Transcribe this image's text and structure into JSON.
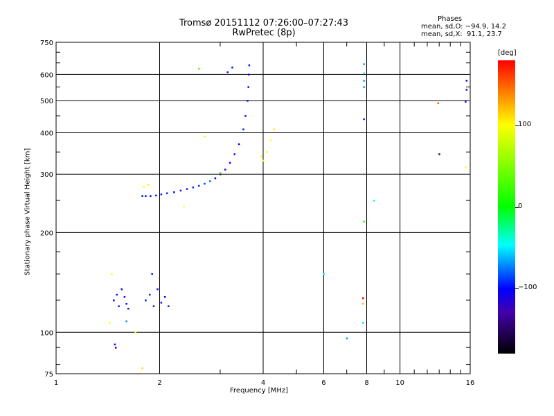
{
  "header": {
    "title_line1": "Tromsø 20151112 07:26:00–07:27:43",
    "title_line2": "RwPretec (8p)",
    "phases_title": "Phases",
    "phases_o": "mean, sd,O: −94.9, 14.2",
    "phases_x": "mean, sd,X:  91.1, 23.7"
  },
  "colorbar": {
    "unit": "[deg]",
    "ticks": [
      {
        "value": 100,
        "label": "100"
      },
      {
        "value": 0,
        "label": "0"
      },
      {
        "value": -100,
        "label": "−100"
      }
    ],
    "range": [
      -180,
      180
    ]
  },
  "chart_data": {
    "type": "scatter",
    "title": "Tromsø 20151112 07:26:00–07:27:43",
    "subtitle": "RwPretec (8p)",
    "xlabel": "Frequency [MHz]",
    "ylabel": "Stationary phase Virtual Height [km]",
    "x_scale": "log",
    "y_scale": "log",
    "xlim": [
      1,
      16
    ],
    "ylim": [
      75,
      750
    ],
    "x_ticks": [
      {
        "value": 1,
        "label": "1"
      },
      {
        "value": 2,
        "label": "2"
      },
      {
        "value": 4,
        "label": "4"
      },
      {
        "value": 6,
        "label": "6"
      },
      {
        "value": 8,
        "label": "8"
      },
      {
        "value": 10,
        "label": "10"
      },
      {
        "value": 16,
        "label": "16"
      }
    ],
    "y_ticks": [
      {
        "value": 75,
        "label": "75"
      },
      {
        "value": 100,
        "label": "100"
      },
      {
        "value": 200,
        "label": "200"
      },
      {
        "value": 300,
        "label": "300"
      },
      {
        "value": 400,
        "label": "400"
      },
      {
        "value": 500,
        "label": "500"
      },
      {
        "value": 600,
        "label": "600"
      },
      {
        "value": 750,
        "label": "750"
      }
    ],
    "grid": true,
    "color_variable": "phase [deg]",
    "points": [
      [
        1.78,
        258,
        -95
      ],
      [
        1.82,
        258,
        -95
      ],
      [
        1.88,
        258,
        -98
      ],
      [
        1.95,
        259,
        -95
      ],
      [
        2.02,
        261,
        -95
      ],
      [
        2.1,
        263,
        -92
      ],
      [
        2.2,
        265,
        -95
      ],
      [
        2.3,
        268,
        -95
      ],
      [
        2.4,
        271,
        -92
      ],
      [
        2.5,
        274,
        -90
      ],
      [
        2.6,
        277,
        -88
      ],
      [
        2.7,
        281,
        -80
      ],
      [
        2.8,
        286,
        -70
      ],
      [
        2.9,
        292,
        -110
      ],
      [
        3.0,
        300,
        -120
      ],
      [
        3.1,
        310,
        -115
      ],
      [
        3.2,
        325,
        -100
      ],
      [
        3.3,
        345,
        -100
      ],
      [
        3.4,
        370,
        -100
      ],
      [
        3.5,
        410,
        -95
      ],
      [
        3.55,
        450,
        -95
      ],
      [
        3.6,
        500,
        -95
      ],
      [
        3.62,
        550,
        -98
      ],
      [
        3.63,
        600,
        -100
      ],
      [
        3.64,
        640,
        -95
      ],
      [
        3.15,
        610,
        -95
      ],
      [
        3.25,
        630,
        -95
      ],
      [
        1.47,
        125,
        -100
      ],
      [
        1.5,
        130,
        -95
      ],
      [
        1.52,
        120,
        -95
      ],
      [
        1.55,
        135,
        -98
      ],
      [
        1.58,
        128,
        -100
      ],
      [
        1.6,
        122,
        -95
      ],
      [
        1.62,
        118,
        -95
      ],
      [
        1.48,
        92,
        -110
      ],
      [
        1.49,
        90,
        -110
      ],
      [
        1.82,
        125,
        -95
      ],
      [
        1.87,
        130,
        -95
      ],
      [
        1.92,
        120,
        -95
      ],
      [
        1.97,
        135,
        -98
      ],
      [
        2.02,
        123,
        -95
      ],
      [
        2.07,
        128,
        -100
      ],
      [
        2.12,
        120,
        -95
      ],
      [
        1.9,
        150,
        -95
      ],
      [
        4.0,
        330,
        100
      ],
      [
        4.1,
        350,
        95
      ],
      [
        4.2,
        380,
        100
      ],
      [
        4.3,
        410,
        105
      ],
      [
        3.95,
        340,
        95
      ],
      [
        1.8,
        275,
        100
      ],
      [
        1.85,
        279,
        105
      ],
      [
        2.7,
        390,
        90
      ],
      [
        2.6,
        625,
        30
      ],
      [
        3.0,
        303,
        30
      ],
      [
        1.43,
        107,
        100
      ],
      [
        1.7,
        100,
        100
      ],
      [
        1.78,
        78,
        110
      ],
      [
        2.35,
        240,
        100
      ],
      [
        1.45,
        150,
        100
      ],
      [
        1.6,
        108,
        -60
      ],
      [
        7.85,
        645,
        -55
      ],
      [
        7.85,
        605,
        -40
      ],
      [
        7.85,
        575,
        -60
      ],
      [
        7.85,
        550,
        -55
      ],
      [
        7.85,
        440,
        -90
      ],
      [
        7.85,
        216,
        10
      ],
      [
        8.4,
        250,
        -30
      ],
      [
        7.8,
        107,
        -40
      ],
      [
        7.8,
        122,
        120
      ],
      [
        7.8,
        127,
        180
      ],
      [
        6.0,
        150,
        -30
      ],
      [
        7.0,
        96,
        -60
      ],
      [
        12.9,
        492,
        150
      ],
      [
        13.0,
        345,
        -150
      ],
      [
        15.6,
        575,
        -110
      ],
      [
        15.6,
        540,
        -110
      ],
      [
        15.5,
        497,
        -120
      ],
      [
        15.5,
        315,
        100
      ]
    ]
  }
}
